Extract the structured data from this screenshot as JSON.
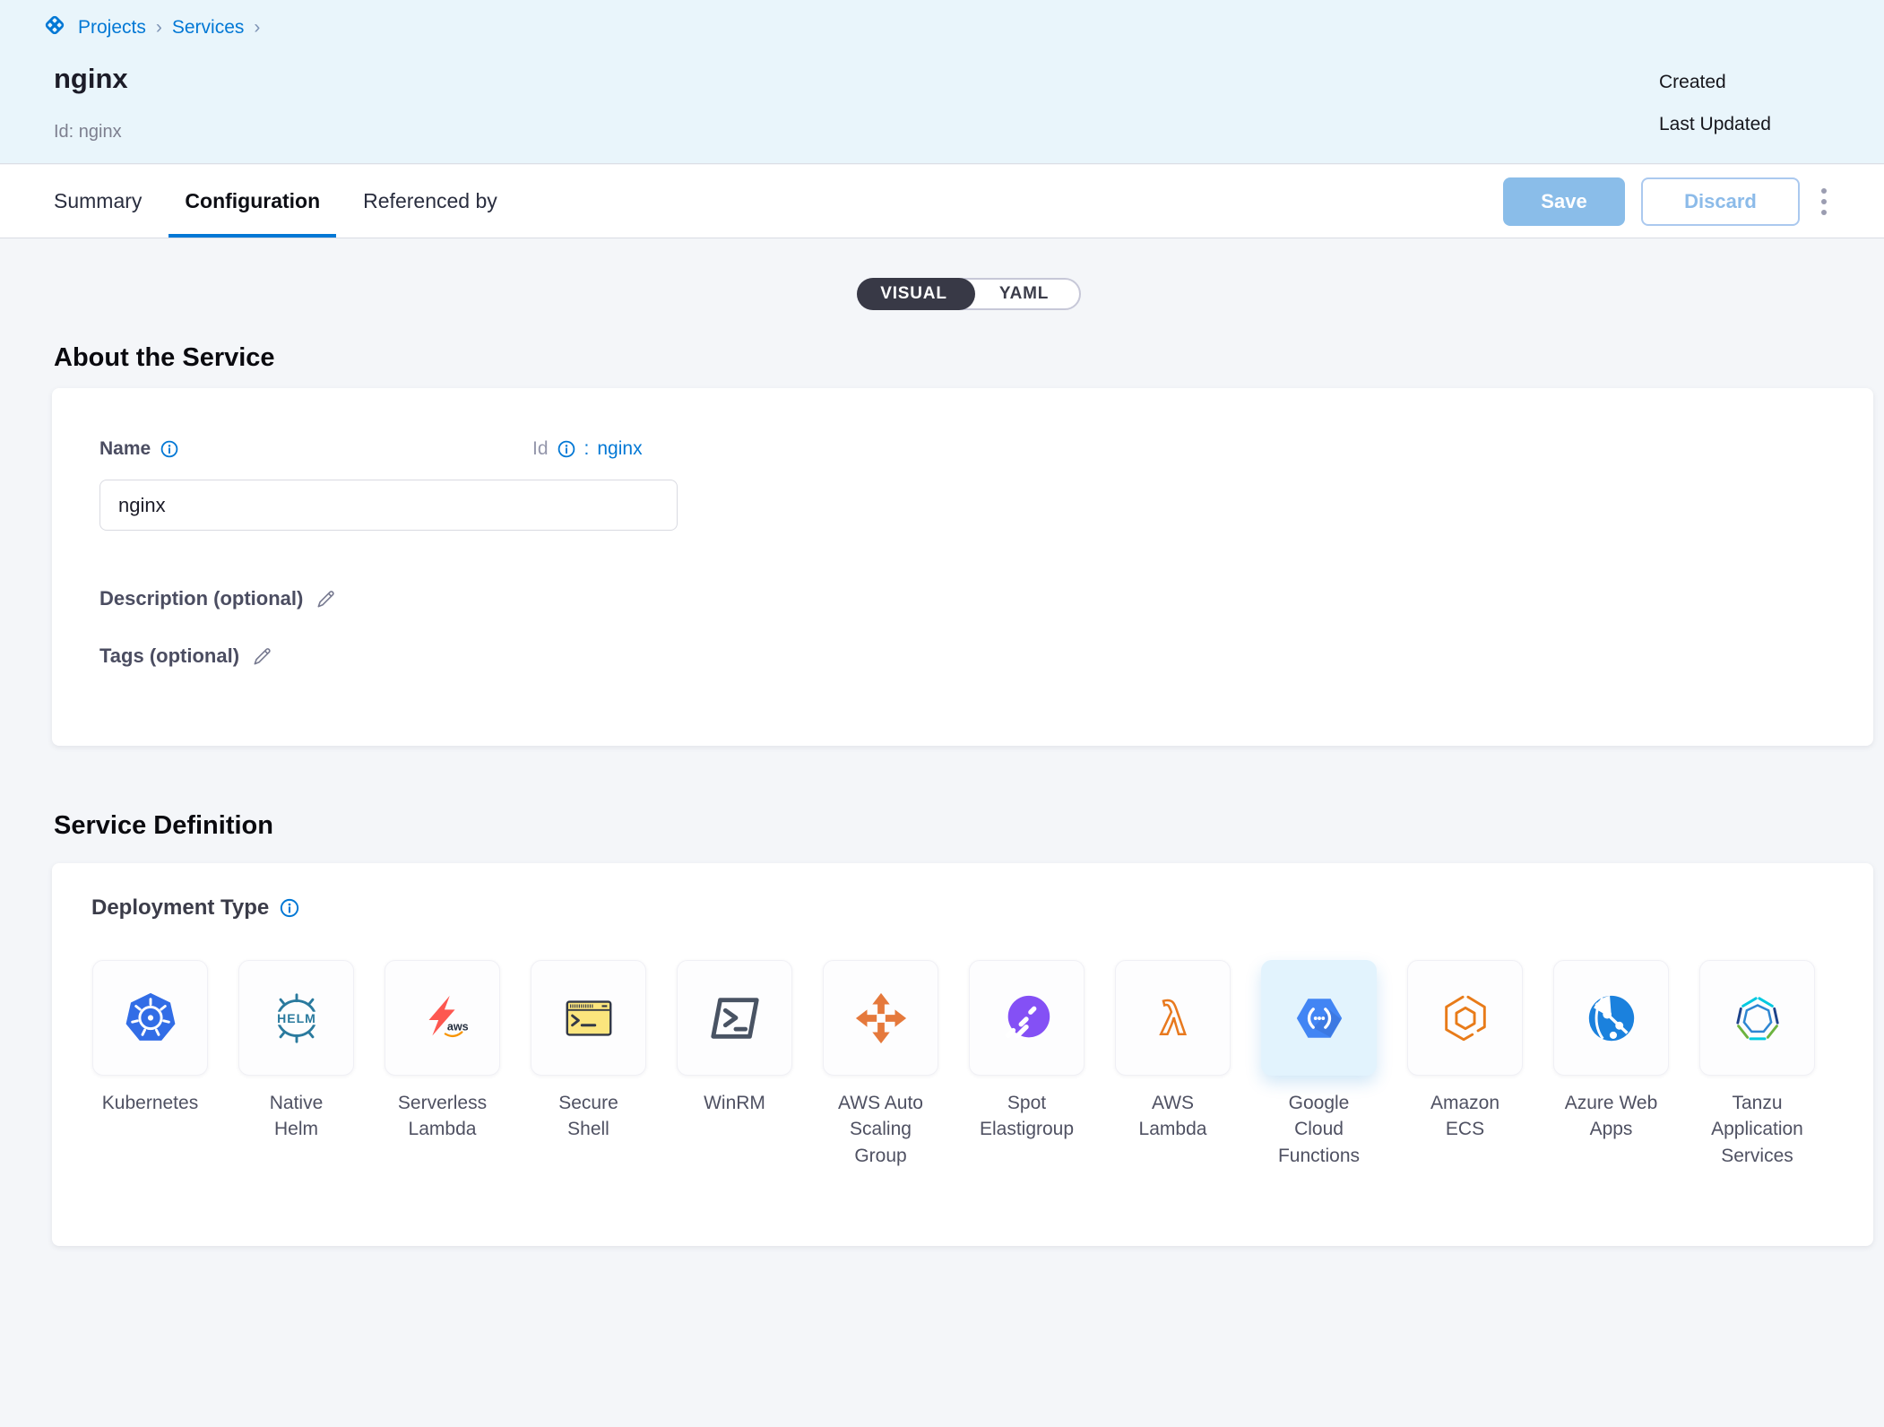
{
  "breadcrumb": {
    "items": [
      {
        "label": "Projects"
      },
      {
        "label": "Services"
      }
    ]
  },
  "header": {
    "title": "nginx",
    "id_text": "Id: nginx",
    "created_label": "Created",
    "last_updated_label": "Last Updated"
  },
  "tabs": [
    {
      "label": "Summary",
      "active": false
    },
    {
      "label": "Configuration",
      "active": true
    },
    {
      "label": "Referenced by",
      "active": false
    }
  ],
  "actions": {
    "save_label": "Save",
    "discard_label": "Discard"
  },
  "view_toggle": {
    "options": [
      "VISUAL",
      "YAML"
    ],
    "selected": "VISUAL"
  },
  "about": {
    "heading": "About the Service",
    "name_label": "Name",
    "name_value": "nginx",
    "id_label": "Id",
    "id_separator": ":",
    "id_value": "nginx",
    "description_label": "Description (optional)",
    "tags_label": "Tags (optional)"
  },
  "service_definition": {
    "heading": "Service Definition",
    "deployment_type_label": "Deployment Type",
    "types": [
      {
        "key": "kubernetes",
        "label": "Kubernetes",
        "selected": false
      },
      {
        "key": "native-helm",
        "label": "Native Helm",
        "selected": false
      },
      {
        "key": "serverless-lambda",
        "label": "Serverless Lambda",
        "selected": false
      },
      {
        "key": "secure-shell",
        "label": "Secure Shell",
        "selected": false
      },
      {
        "key": "winrm",
        "label": "WinRM",
        "selected": false
      },
      {
        "key": "aws-auto-scaling-group",
        "label": "AWS Auto Scaling Group",
        "selected": false
      },
      {
        "key": "spot-elastigroup",
        "label": "Spot Elastigroup",
        "selected": false
      },
      {
        "key": "aws-lambda",
        "label": "AWS Lambda",
        "selected": false
      },
      {
        "key": "google-cloud-functions",
        "label": "Google Cloud Functions",
        "selected": true
      },
      {
        "key": "amazon-ecs",
        "label": "Amazon ECS",
        "selected": false
      },
      {
        "key": "azure-web-apps",
        "label": "Azure Web Apps",
        "selected": false
      },
      {
        "key": "tanzu-application-services",
        "label": "Tanzu Application Services",
        "selected": false
      }
    ]
  },
  "colors": {
    "primary": "#0278d5",
    "header_bg": "#e9f5fb",
    "selected_tile_bg": "#e2f3fd",
    "save_bg": "#8abde9",
    "toggle_dark": "#383946"
  }
}
